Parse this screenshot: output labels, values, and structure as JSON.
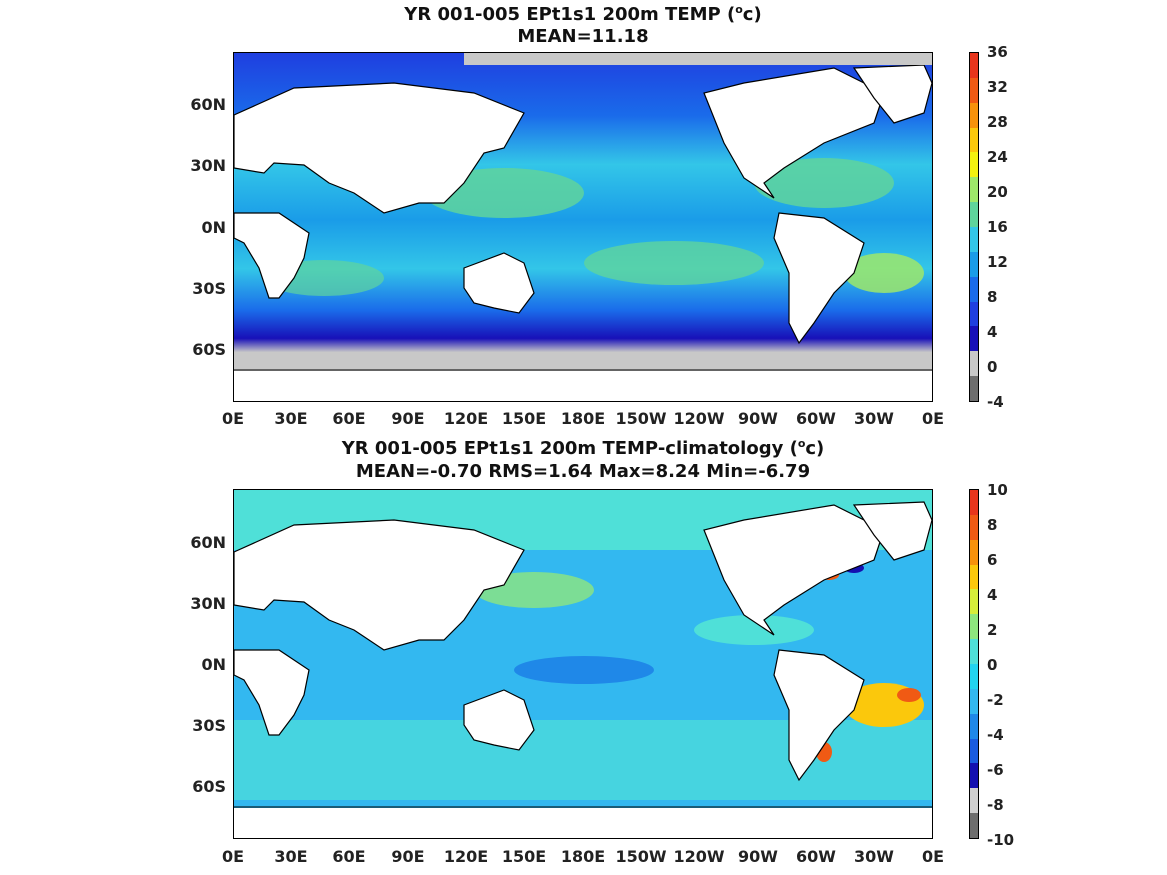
{
  "chart_data": [
    {
      "type": "heatmap",
      "title": "YR 001-005 EPt1s1 200m TEMP (",
      "title_unit": "o",
      "title_unit_suffix": "c)",
      "subtitle": "MEAN=11.18",
      "lat_ticks": [
        "60N",
        "30N",
        "0N",
        "30S",
        "60S"
      ],
      "lon_ticks": [
        "0E",
        "30E",
        "60E",
        "90E",
        "120E",
        "150E",
        "180E",
        "150W",
        "120W",
        "90W",
        "60W",
        "30W",
        "0E"
      ],
      "colorbar_ticks": [
        "36",
        "32",
        "28",
        "24",
        "20",
        "16",
        "12",
        "8",
        "4",
        "0",
        "-4"
      ],
      "colorbar_range": [
        -4,
        36
      ],
      "colorbar_colors": [
        "#e8351c",
        "#f05a14",
        "#f7920c",
        "#fbc80c",
        "#f3f20f",
        "#9ee86a",
        "#5fd49c",
        "#33c6e8",
        "#1a9ce8",
        "#1a6bea",
        "#1f3fe0",
        "#1810b8",
        "#c8c8c8",
        "#6e6e6e"
      ]
    },
    {
      "type": "heatmap",
      "title": "YR 001-005 EPt1s1 200m TEMP-climatology (",
      "title_unit": "o",
      "title_unit_suffix": "c)",
      "subtitle": "MEAN=-0.70   RMS=1.64   Max=8.24   Min=-6.79",
      "lat_ticks": [
        "60N",
        "30N",
        "0N",
        "30S",
        "60S"
      ],
      "lon_ticks": [
        "0E",
        "30E",
        "60E",
        "90E",
        "120E",
        "150E",
        "180E",
        "150W",
        "120W",
        "90W",
        "60W",
        "30W",
        "0E"
      ],
      "colorbar_ticks": [
        "10",
        "8",
        "6",
        "4",
        "2",
        "0",
        "-2",
        "-4",
        "-6",
        "-8",
        "-10"
      ],
      "colorbar_range": [
        -10,
        10
      ],
      "colorbar_colors": [
        "#e8351c",
        "#f05a14",
        "#f7920c",
        "#fbc80c",
        "#d6ee3a",
        "#8ee67e",
        "#4fe0d8",
        "#22d4f0",
        "#33b8f0",
        "#1f88e8",
        "#1a5ce0",
        "#1410b0",
        "#d0d0d0",
        "#6e6e6e"
      ]
    }
  ]
}
